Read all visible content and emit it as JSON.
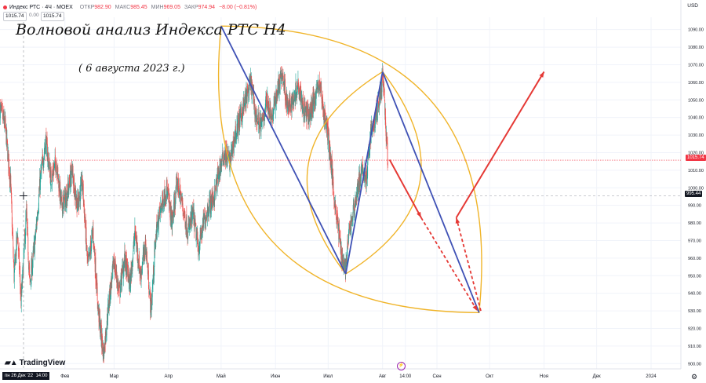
{
  "header": {
    "symbol": "Индекс РТС · 4Ч · MOEX",
    "open_label": "ОТКР",
    "open_value": "982.90",
    "high_label": "МАКС",
    "high_value": "985.45",
    "low_label": "МИН",
    "low_value": "969.05",
    "close_label": "ЗАКР",
    "close_value": "974.94",
    "change": "−8.00 (−0.81%)",
    "quote_left": "1015.74",
    "quote_mid": "0.00",
    "quote_right": "1015.74",
    "currency": "USD"
  },
  "annotations": {
    "title": "Волновой анализ Индекса РТС Н4",
    "date": "( 6 августа 2023 г.)"
  },
  "branding": "TradingView",
  "crosshair_date": "пн 26 Дек '22",
  "crosshair_time": "14:00",
  "price_badges": {
    "last": "1015.74",
    "crosshair": "995.44"
  },
  "colors": {
    "up": "#26a69a",
    "down": "#ef5350",
    "wave_line": "#3f51b5",
    "projection": "#e53935",
    "leaf": "#f0b429",
    "last_price_line": "#f23645",
    "grid": "#f0f3fa"
  },
  "chart_data": {
    "type": "candlestick",
    "timeframe": "4H",
    "y_axis": {
      "ticks": [
        900,
        910,
        920,
        930,
        940,
        950,
        960,
        970,
        980,
        990,
        1000,
        1010,
        1020,
        1030,
        1040,
        1050,
        1060,
        1070,
        1080,
        1090
      ],
      "range": [
        897,
        1097
      ]
    },
    "x_axis": {
      "range": [
        "2022-12-26",
        "2024-01-18"
      ],
      "labels": [
        {
          "text": "Фев",
          "date": "2023-02-01"
        },
        {
          "text": "Мар",
          "date": "2023-03-01"
        },
        {
          "text": "Апр",
          "date": "2023-04-01"
        },
        {
          "text": "Май",
          "date": "2023-05-01"
        },
        {
          "text": "Июн",
          "date": "2023-06-01"
        },
        {
          "text": "Июл",
          "date": "2023-07-01"
        },
        {
          "text": "Авг",
          "date": "2023-08-01"
        },
        {
          "text": "14:00",
          "date": "2023-08-14"
        },
        {
          "text": "Сен",
          "date": "2023-09-01"
        },
        {
          "text": "Окт",
          "date": "2023-10-01"
        },
        {
          "text": "Ноя",
          "date": "2023-11-01"
        },
        {
          "text": "Дек",
          "date": "2023-12-01"
        },
        {
          "text": "2024",
          "date": "2024-01-01"
        }
      ]
    },
    "price_path": [
      [
        "2022-12-26",
        1045
      ],
      [
        "2022-12-29",
        1035
      ],
      [
        "2023-01-01",
        1003
      ],
      [
        "2023-01-03",
        950
      ],
      [
        "2023-01-05",
        975
      ],
      [
        "2023-01-07",
        935
      ],
      [
        "2023-01-10",
        985
      ],
      [
        "2023-01-12",
        945
      ],
      [
        "2023-01-15",
        970
      ],
      [
        "2023-01-18",
        1005
      ],
      [
        "2023-01-21",
        1027
      ],
      [
        "2023-01-24",
        1005
      ],
      [
        "2023-01-27",
        1015
      ],
      [
        "2023-01-30",
        990
      ],
      [
        "2023-02-02",
        995
      ],
      [
        "2023-02-05",
        1010
      ],
      [
        "2023-02-08",
        990
      ],
      [
        "2023-02-11",
        1003
      ],
      [
        "2023-02-14",
        955
      ],
      [
        "2023-02-17",
        975
      ],
      [
        "2023-02-20",
        930
      ],
      [
        "2023-02-23",
        905
      ],
      [
        "2023-02-26",
        935
      ],
      [
        "2023-03-01",
        958
      ],
      [
        "2023-03-04",
        940
      ],
      [
        "2023-03-07",
        960
      ],
      [
        "2023-03-10",
        945
      ],
      [
        "2023-03-13",
        975
      ],
      [
        "2023-03-16",
        950
      ],
      [
        "2023-03-19",
        968
      ],
      [
        "2023-03-22",
        930
      ],
      [
        "2023-03-25",
        975
      ],
      [
        "2023-03-28",
        990
      ],
      [
        "2023-03-31",
        1000
      ],
      [
        "2023-04-03",
        980
      ],
      [
        "2023-04-06",
        1003
      ],
      [
        "2023-04-09",
        990
      ],
      [
        "2023-04-12",
        975
      ],
      [
        "2023-04-15",
        985
      ],
      [
        "2023-04-18",
        965
      ],
      [
        "2023-04-21",
        980
      ],
      [
        "2023-04-24",
        990
      ],
      [
        "2023-04-27",
        995
      ],
      [
        "2023-04-30",
        1010
      ],
      [
        "2023-05-03",
        1020
      ],
      [
        "2023-05-06",
        1015
      ],
      [
        "2023-05-09",
        1030
      ],
      [
        "2023-05-12",
        1040
      ],
      [
        "2023-05-15",
        1050
      ],
      [
        "2023-05-18",
        1060
      ],
      [
        "2023-05-21",
        1040
      ],
      [
        "2023-05-24",
        1035
      ],
      [
        "2023-05-27",
        1050
      ],
      [
        "2023-05-30",
        1040
      ],
      [
        "2023-06-02",
        1055
      ],
      [
        "2023-06-05",
        1065
      ],
      [
        "2023-06-08",
        1045
      ],
      [
        "2023-06-11",
        1050
      ],
      [
        "2023-06-14",
        1060
      ],
      [
        "2023-06-17",
        1045
      ],
      [
        "2023-06-20",
        1040
      ],
      [
        "2023-06-23",
        1050
      ],
      [
        "2023-06-26",
        1060
      ],
      [
        "2023-06-29",
        1040
      ],
      [
        "2023-07-01",
        1030
      ],
      [
        "2023-07-03",
        1010
      ],
      [
        "2023-07-05",
        990
      ],
      [
        "2023-07-07",
        975
      ],
      [
        "2023-07-09",
        960
      ],
      [
        "2023-07-11",
        955
      ],
      [
        "2023-07-13",
        975
      ],
      [
        "2023-07-15",
        985
      ],
      [
        "2023-07-17",
        995
      ],
      [
        "2023-07-19",
        1005
      ],
      [
        "2023-07-21",
        1010
      ],
      [
        "2023-07-23",
        1005
      ],
      [
        "2023-07-25",
        1030
      ],
      [
        "2023-07-27",
        1035
      ],
      [
        "2023-07-29",
        1045
      ],
      [
        "2023-07-31",
        1055
      ],
      [
        "2023-08-01",
        1063
      ],
      [
        "2023-08-02",
        1050
      ],
      [
        "2023-08-03",
        1030
      ],
      [
        "2023-08-04",
        1015
      ]
    ],
    "annotations": {
      "wave_lines": [
        [
          [
            "2023-05-01",
            1092
          ],
          [
            "2023-07-11",
            951
          ]
        ],
        [
          [
            "2023-07-11",
            951
          ],
          [
            "2023-08-01",
            1066
          ]
        ],
        [
          [
            "2023-08-01",
            1066
          ],
          [
            "2023-09-25",
            929
          ]
        ]
      ],
      "projection_solid": [
        [
          [
            "2023-08-05",
            1016
          ],
          [
            "2023-08-23",
            983
          ]
        ],
        [
          [
            "2023-09-12",
            983
          ],
          [
            "2023-11-01",
            1066
          ]
        ]
      ],
      "projection_dashed": [
        [
          [
            "2023-08-23",
            983
          ],
          [
            "2023-09-24",
            930
          ]
        ],
        [
          [
            "2023-09-26",
            930
          ],
          [
            "2023-09-12",
            983
          ]
        ]
      ],
      "leaves": [
        {
          "tips": [
            [
              "2023-05-01",
              1092
            ],
            [
              "2023-09-25",
              929
            ]
          ]
        },
        {
          "tips": [
            [
              "2023-07-11",
              951
            ],
            [
              "2023-08-01",
              1066
            ]
          ]
        }
      ]
    }
  }
}
